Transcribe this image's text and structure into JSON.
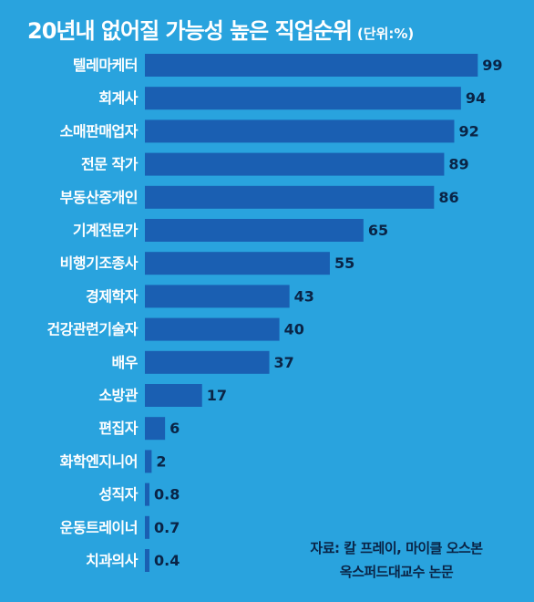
{
  "chart_data": {
    "type": "bar",
    "orientation": "horizontal",
    "title": "20년내 없어질 가능성 높은 직업순위",
    "unit_label": "(단위:%)",
    "categories": [
      "텔레마케터",
      "회계사",
      "소매판매업자",
      "전문 작가",
      "부동산중개인",
      "기계전문가",
      "비행기조종사",
      "경제학자",
      "건강관련기술자",
      "배우",
      "소방관",
      "편집자",
      "화학엔지니어",
      "성직자",
      "운동트레이너",
      "치과의사"
    ],
    "values": [
      99,
      94,
      92,
      89,
      86,
      65,
      55,
      43,
      40,
      37,
      17,
      6,
      2,
      0.8,
      0.7,
      0.4
    ],
    "value_labels": [
      "99",
      "94",
      "92",
      "89",
      "86",
      "65",
      "55",
      "43",
      "40",
      "37",
      "17",
      "6",
      "2",
      "0.8",
      "0.7",
      "0.4"
    ],
    "xlim": [
      0,
      100
    ],
    "colors": {
      "background": "#29a3de",
      "bar": "#1a5fb2",
      "label": "#ffffff",
      "value": "#0a2446"
    }
  },
  "source": {
    "line1": "자료: 칼 프레이, 마이클 오스본",
    "line2": "옥스퍼드대교수 논문"
  }
}
